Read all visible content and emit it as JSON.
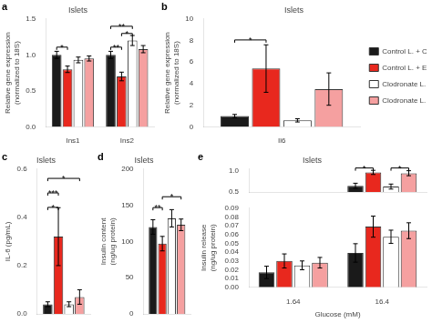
{
  "chart_data": [
    {
      "type": "bar",
      "title": "Islets",
      "ylabel": "Relative gene expression\n(normalized to 18S)",
      "categories": [
        "Ins1",
        "Ins2"
      ],
      "series": [
        {
          "color": "#1a1a1a",
          "values": [
            1.0,
            1.0
          ],
          "errors": [
            0.05,
            0.05
          ]
        },
        {
          "color": "#e8281e",
          "values": [
            0.8,
            0.7
          ],
          "errors": [
            0.045,
            0.06
          ]
        },
        {
          "color": "#ffffff",
          "values": [
            0.93,
            1.2
          ],
          "errors": [
            0.04,
            0.07
          ]
        },
        {
          "color": "#f5a0a0",
          "values": [
            0.95,
            1.08
          ],
          "errors": [
            0.035,
            0.05
          ]
        }
      ],
      "ylim": [
        0,
        1.5
      ],
      "yticks": [
        {
          "value": 0,
          "label": "0.0"
        },
        0.5,
        {
          "value": 1,
          "label": "1.0"
        },
        1.5
      ],
      "grid": false,
      "annotations": [
        {
          "text": "a"
        },
        {
          "text": "*",
          "category": 0,
          "between": [
            0,
            1
          ],
          "y": 1.07
        },
        {
          "text": "**",
          "category": 1,
          "between": [
            0,
            1
          ],
          "y": 1.07
        },
        {
          "text": "*",
          "category": 1,
          "between": [
            1,
            2
          ],
          "y": 1.26
        },
        {
          "text": "**",
          "category": 1,
          "between": [
            0,
            2
          ],
          "y": 1.36
        }
      ]
    },
    {
      "type": "bar",
      "title": "Islets",
      "ylabel": "Relative gene expression\n(normalized to 18S)",
      "categories": [
        "Il6"
      ],
      "series": [
        {
          "name": "Control L. + Control",
          "color": "#1a1a1a",
          "values": [
            1.0
          ],
          "errors": [
            0.15
          ]
        },
        {
          "name": "Control L. + E.cloacae",
          "color": "#e8281e",
          "values": [
            5.4
          ],
          "errors": [
            2.2
          ]
        },
        {
          "name": "Clodronate L. + Control",
          "color": "#ffffff",
          "values": [
            0.6
          ],
          "errors": [
            0.15
          ]
        },
        {
          "name": "Clodronate L. + E.cloacae",
          "color": "#f5a0a0",
          "values": [
            3.5
          ],
          "errors": [
            1.5
          ]
        }
      ],
      "ylim": [
        0,
        10
      ],
      "yticks": [
        0,
        2,
        4,
        6,
        8,
        10
      ],
      "grid": false,
      "legend": "right",
      "annotations": [
        {
          "text": "b"
        },
        {
          "text": "*",
          "category": 0,
          "between": [
            0,
            1
          ],
          "y": 7.8
        }
      ]
    },
    {
      "type": "bar",
      "title": "Islets",
      "ylabel": "IL-6 (pg/mL)",
      "categories": [
        null
      ],
      "tick_labels": "y",
      "series": [
        {
          "color": "#1a1a1a",
          "values": [
            0.04
          ],
          "errors": [
            0.01
          ]
        },
        {
          "color": "#e8281e",
          "values": [
            0.32
          ],
          "errors": [
            0.12
          ]
        },
        {
          "color": "#ffffff",
          "values": [
            0.04
          ],
          "errors": [
            0.01
          ]
        },
        {
          "color": "#f5a0a0",
          "values": [
            0.07
          ],
          "errors": [
            0.03
          ]
        }
      ],
      "ylim": [
        0,
        0.6
      ],
      "yticks": [
        {
          "value": 0,
          "label": "0.0"
        },
        0.2,
        0.4,
        0.6
      ],
      "grid": false,
      "annotations": [
        {
          "text": "c"
        },
        {
          "text": "*",
          "category": 0,
          "between": [
            0,
            1
          ],
          "y": 0.43
        },
        {
          "text": "***",
          "category": 0,
          "between": [
            0,
            1
          ],
          "y": 0.49
        },
        {
          "text": "*",
          "category": 0,
          "between": [
            0,
            3
          ],
          "y": 0.55
        }
      ]
    },
    {
      "type": "bar",
      "title": "Islets",
      "ylabel": "Insulin content\n(ng/ug protein)",
      "categories": [
        null
      ],
      "tick_labels": "y",
      "series": [
        {
          "color": "#1a1a1a",
          "values": [
            120
          ],
          "errors": [
            10
          ]
        },
        {
          "color": "#e8281e",
          "values": [
            97
          ],
          "errors": [
            10
          ]
        },
        {
          "color": "#ffffff",
          "values": [
            132
          ],
          "errors": [
            12
          ]
        },
        {
          "color": "#f5a0a0",
          "values": [
            123
          ],
          "errors": [
            8
          ]
        }
      ],
      "ylim": [
        0,
        200
      ],
      "yticks": [
        0,
        50,
        100,
        150,
        200
      ],
      "grid": false,
      "annotations": [
        {
          "text": "d"
        },
        {
          "text": "**",
          "category": 0,
          "between": [
            0,
            1
          ],
          "y": 143
        },
        {
          "text": "*",
          "category": 0,
          "between": [
            1,
            3
          ],
          "y": 158
        }
      ]
    },
    {
      "type": "bar",
      "title": "Islets",
      "categories": [
        "1.64",
        "16.4"
      ],
      "tick_labels": "y",
      "series": [
        {
          "color": "#1a1a1a",
          "values": [
            null,
            0.65
          ],
          "errors": [
            null,
            0.06
          ]
        },
        {
          "color": "#e8281e",
          "values": [
            null,
            0.97
          ],
          "errors": [
            null,
            0.05
          ]
        },
        {
          "color": "#ffffff",
          "values": [
            null,
            0.63
          ],
          "errors": [
            null,
            0.06
          ]
        },
        {
          "color": "#f5a0a0",
          "values": [
            null,
            0.95
          ],
          "errors": [
            null,
            0.06
          ]
        }
      ],
      "ylim": [
        0.5,
        1.05
      ],
      "yticks": [
        0.5,
        {
          "value": 1,
          "label": "1.0"
        }
      ],
      "grid": false,
      "annotations": [
        {
          "text": "e"
        },
        {
          "text": "*",
          "category": 1,
          "between": [
            0,
            1
          ],
          "y": 1.01
        },
        {
          "text": "*",
          "category": 1,
          "between": [
            2,
            3
          ],
          "y": 1.01
        }
      ]
    },
    {
      "type": "bar",
      "xlabel": "Glucose (mM)",
      "ylabel": "Insulin release\n(ng/ug protein)",
      "categories": [
        "1.64",
        "16.4"
      ],
      "series": [
        {
          "color": "#1a1a1a",
          "values": [
            0.017,
            0.0391
          ],
          "errors": [
            0.007,
            0.0105
          ]
        },
        {
          "color": "#e8281e",
          "values": [
            0.03,
            0.069
          ],
          "errors": [
            0.008,
            0.012
          ]
        },
        {
          "color": "#ffffff",
          "values": [
            0.025,
            0.0575
          ],
          "errors": [
            0.005,
            0.0075
          ]
        },
        {
          "color": "#f5a0a0",
          "values": [
            0.028,
            0.0644
          ],
          "errors": [
            0.006,
            0.009
          ]
        }
      ],
      "ylim": [
        0,
        0.09
      ],
      "yticks": [
        {
          "value": 0,
          "label": "0.00"
        },
        0.01,
        0.02,
        0.03,
        0.04,
        0.05,
        0.06,
        0.07,
        0.08,
        0.09
      ],
      "grid": false
    }
  ]
}
